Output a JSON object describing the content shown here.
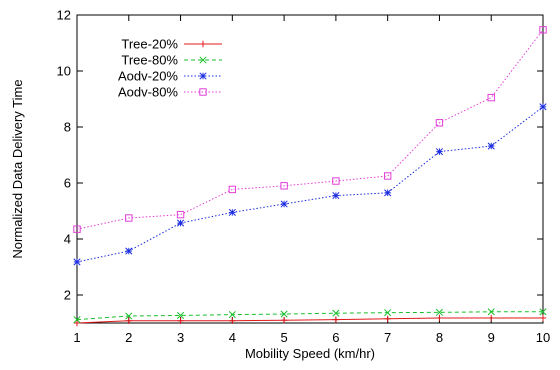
{
  "chart_data": {
    "type": "line",
    "title": "",
    "xlabel": "Mobility Speed (km/hr)",
    "ylabel": "Normalized Data Delivery Time",
    "x": [
      1,
      2,
      3,
      4,
      5,
      6,
      7,
      8,
      9,
      10
    ],
    "xlim": [
      1,
      10
    ],
    "ylim": [
      1,
      12
    ],
    "xticks": [
      "1",
      "2",
      "3",
      "4",
      "5",
      "6",
      "7",
      "8",
      "9",
      "10"
    ],
    "yticks": [
      2,
      4,
      6,
      8,
      10,
      12
    ],
    "ytick_labels": [
      "2",
      "4",
      "6",
      "8",
      "10",
      "12"
    ],
    "grid": false,
    "legend_position": "top-left",
    "series": [
      {
        "name": "Tree-20%",
        "color": "#e0181b",
        "line_style": "solid",
        "marker": "plus",
        "values": [
          1.0,
          1.08,
          1.08,
          1.08,
          1.1,
          1.12,
          1.15,
          1.18,
          1.18,
          1.18
        ]
      },
      {
        "name": "Tree-80%",
        "color": "#19c02c",
        "line_style": "dashed",
        "marker": "x",
        "values": [
          1.12,
          1.25,
          1.27,
          1.3,
          1.32,
          1.35,
          1.37,
          1.38,
          1.4,
          1.4
        ]
      },
      {
        "name": "Aodv-20%",
        "color": "#1a2be0",
        "line_style": "dotted",
        "marker": "star",
        "values": [
          3.18,
          3.57,
          4.57,
          4.95,
          5.25,
          5.55,
          5.65,
          7.12,
          7.32,
          8.72
        ]
      },
      {
        "name": "Aodv-80%",
        "color": "#e23fd8",
        "line_style": "dotted",
        "marker": "square",
        "values": [
          4.35,
          4.75,
          4.87,
          5.77,
          5.9,
          6.07,
          6.25,
          8.15,
          9.05,
          11.47
        ]
      }
    ]
  }
}
